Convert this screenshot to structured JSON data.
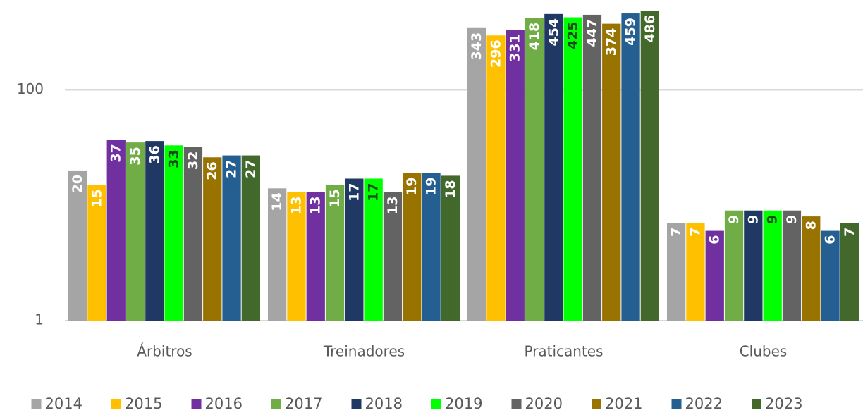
{
  "chart_data": {
    "type": "bar",
    "categories": [
      "Árbitros",
      "Treinadores",
      "Praticantes",
      "Clubes"
    ],
    "series": [
      {
        "name": "2014",
        "color": "#a5a5a5",
        "values": [
          20,
          14,
          343,
          7
        ]
      },
      {
        "name": "2015",
        "color": "#ffc000",
        "values": [
          15,
          13,
          296,
          7
        ]
      },
      {
        "name": "2016",
        "color": "#7030a0",
        "values": [
          37,
          13,
          331,
          6
        ]
      },
      {
        "name": "2017",
        "color": "#70ad47",
        "values": [
          35,
          15,
          418,
          9
        ]
      },
      {
        "name": "2018",
        "color": "#203864",
        "values": [
          36,
          17,
          454,
          9
        ]
      },
      {
        "name": "2019",
        "color": "#00ff00",
        "values": [
          33,
          17,
          425,
          9
        ]
      },
      {
        "name": "2020",
        "color": "#636363",
        "values": [
          32,
          13,
          447,
          9
        ]
      },
      {
        "name": "2021",
        "color": "#997300",
        "values": [
          26,
          19,
          374,
          8
        ]
      },
      {
        "name": "2022",
        "color": "#255e91",
        "values": [
          27,
          19,
          459,
          6
        ]
      },
      {
        "name": "2023",
        "color": "#43682b",
        "values": [
          27,
          18,
          486,
          7
        ]
      }
    ],
    "ylim": [
      1,
      600
    ],
    "yticks": [
      1,
      100
    ],
    "log_scale": true,
    "grid": true,
    "legend": "bottom"
  }
}
